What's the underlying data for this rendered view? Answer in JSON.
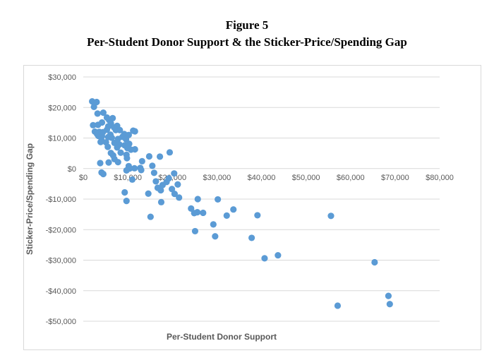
{
  "figure": {
    "number": "Figure 5",
    "caption": "Per-Student Donor Support & the Sticker-Price/Spending Gap"
  },
  "chart_data": {
    "type": "scatter",
    "title": "",
    "xlabel": "Per-Student Donor Support",
    "ylabel": "Sticker-Price/Spending Gap",
    "xlim": [
      0,
      80000
    ],
    "ylim": [
      -50000,
      30000
    ],
    "x_ticks": [
      0,
      10000,
      20000,
      30000,
      40000,
      50000,
      60000,
      70000,
      80000
    ],
    "x_tick_labels": [
      "$0",
      "$10,000",
      "$20,000",
      "$30,000",
      "$40,000",
      "$50,000",
      "$60,000",
      "$70,000",
      "$80,000"
    ],
    "y_ticks": [
      30000,
      20000,
      10000,
      0,
      -10000,
      -20000,
      -30000,
      -40000,
      -50000
    ],
    "y_tick_labels": [
      "$30,000",
      "$20,000",
      "$10,000",
      "$0",
      "-$10,000",
      "-$20,000",
      "-$30,000",
      "-$40,000",
      "-$50,000"
    ],
    "grid": "horizontal",
    "legend": "none",
    "marker_color": "#5b9bd5",
    "gridline_color": "#d9d9d9",
    "tick_label_color": "#595959",
    "series": [
      {
        "points": [
          [
            2000,
            22000
          ],
          [
            3000,
            21800
          ],
          [
            2400,
            20200
          ],
          [
            4500,
            18300
          ],
          [
            3200,
            18000
          ],
          [
            5300,
            16700
          ],
          [
            6600,
            16500
          ],
          [
            5800,
            15900
          ],
          [
            4200,
            15100
          ],
          [
            6200,
            14800
          ],
          [
            2200,
            14200
          ],
          [
            3300,
            14300
          ],
          [
            7600,
            14000
          ],
          [
            5600,
            13800
          ],
          [
            6900,
            13500
          ],
          [
            5300,
            12700
          ],
          [
            7300,
            12600
          ],
          [
            8200,
            12600
          ],
          [
            11200,
            12400
          ],
          [
            11600,
            12200
          ],
          [
            2600,
            12100
          ],
          [
            3600,
            12000
          ],
          [
            4400,
            11900
          ],
          [
            3100,
            11300
          ],
          [
            9200,
            11300
          ],
          [
            6100,
            11100
          ],
          [
            10200,
            11000
          ],
          [
            3400,
            10700
          ],
          [
            4200,
            10600
          ],
          [
            8800,
            10400
          ],
          [
            5600,
            10300
          ],
          [
            6400,
            10100
          ],
          [
            7800,
            9700
          ],
          [
            9600,
            9600
          ],
          [
            4100,
            9200
          ],
          [
            3900,
            8700
          ],
          [
            5100,
            8600
          ],
          [
            7000,
            8400
          ],
          [
            10300,
            8100
          ],
          [
            8100,
            7900
          ],
          [
            9300,
            7600
          ],
          [
            5500,
            7100
          ],
          [
            7600,
            6900
          ],
          [
            9900,
            6700
          ],
          [
            11600,
            6300
          ],
          [
            10700,
            6200
          ],
          [
            19400,
            5300
          ],
          [
            8400,
            5200
          ],
          [
            6200,
            5100
          ],
          [
            9700,
            4500
          ],
          [
            6700,
            4300
          ],
          [
            14800,
            4000
          ],
          [
            17200,
            3900
          ],
          [
            9800,
            3400
          ],
          [
            7000,
            3100
          ],
          [
            13200,
            2400
          ],
          [
            7800,
            2100
          ],
          [
            5700,
            2000
          ],
          [
            3800,
            1800
          ],
          [
            15500,
            900
          ],
          [
            10200,
            800
          ],
          [
            11500,
            100
          ],
          [
            12800,
            200
          ],
          [
            10400,
            0
          ],
          [
            13000,
            -500
          ],
          [
            9700,
            -600
          ],
          [
            4100,
            -1300
          ],
          [
            15900,
            -1400
          ],
          [
            20400,
            -1600
          ],
          [
            4500,
            -1800
          ],
          [
            11000,
            -3600
          ],
          [
            19200,
            -3200
          ],
          [
            16300,
            -4200
          ],
          [
            18700,
            -4400
          ],
          [
            21200,
            -5200
          ],
          [
            17800,
            -5400
          ],
          [
            16700,
            -6300
          ],
          [
            19900,
            -6700
          ],
          [
            17400,
            -7100
          ],
          [
            9300,
            -7800
          ],
          [
            14600,
            -8200
          ],
          [
            20500,
            -8300
          ],
          [
            21500,
            -9500
          ],
          [
            25700,
            -10000
          ],
          [
            30200,
            -10100
          ],
          [
            9700,
            -10600
          ],
          [
            17500,
            -11000
          ],
          [
            24200,
            -13100
          ],
          [
            33700,
            -13400
          ],
          [
            25600,
            -14300
          ],
          [
            26900,
            -14500
          ],
          [
            24900,
            -14600
          ],
          [
            39100,
            -15300
          ],
          [
            32200,
            -15400
          ],
          [
            55600,
            -15500
          ],
          [
            15100,
            -15800
          ],
          [
            29200,
            -18300
          ],
          [
            25100,
            -20500
          ],
          [
            29600,
            -22200
          ],
          [
            37800,
            -22700
          ],
          [
            43700,
            -28400
          ],
          [
            40700,
            -29400
          ],
          [
            65400,
            -30700
          ],
          [
            68500,
            -41700
          ],
          [
            68800,
            -44400
          ],
          [
            57100,
            -44900
          ]
        ]
      }
    ]
  }
}
